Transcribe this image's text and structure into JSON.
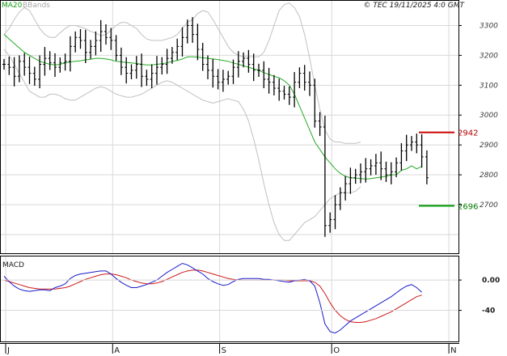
{
  "header": {
    "legend_ma": "MA20",
    "legend_bbands": "BBands",
    "copyright": "© TEC 19/11/2025 4:0 GMT"
  },
  "macd_panel": {
    "title": "MACD"
  },
  "colors": {
    "price": "#000000",
    "ma20": "#22aa22",
    "bbands": "#c0c0c0",
    "macd_line": "#1a1acc",
    "signal_line": "#cc1a1a",
    "resistance": "#cc0000",
    "support": "#009900",
    "grid": "#d8d8d8"
  },
  "chart_data": [
    {
      "type": "line",
      "title": "",
      "ylim": [
        2540,
        3380
      ],
      "y_ticks": [
        2700,
        2800,
        2900,
        3000,
        3100,
        3200,
        3300
      ],
      "x_month_labels": [
        "J",
        "A",
        "S",
        "O",
        "N"
      ],
      "x_month_start_bar": [
        0,
        21,
        42,
        64,
        87
      ],
      "series": [
        {
          "name": "MA20",
          "color": "#22aa22"
        },
        {
          "name": "BBands",
          "color": "#c0c0c0"
        }
      ],
      "close": [
        3170,
        3160,
        3130,
        3180,
        3160,
        3140,
        3120,
        3170,
        3190,
        3175,
        3160,
        3175,
        3180,
        3230,
        3260,
        3250,
        3210,
        3230,
        3250,
        3280,
        3260,
        3250,
        3200,
        3160,
        3140,
        3150,
        3170,
        3130,
        3120,
        3140,
        3160,
        3170,
        3190,
        3210,
        3230,
        3260,
        3300,
        3270,
        3220,
        3170,
        3150,
        3130,
        3110,
        3120,
        3130,
        3160,
        3180,
        3190,
        3170,
        3150,
        3150,
        3120,
        3110,
        3090,
        3080,
        3070,
        3060,
        3110,
        3140,
        3110,
        3100,
        2980,
        2960,
        2630,
        2650,
        2700,
        2740,
        2770,
        2790,
        2800,
        2810,
        2820,
        2830,
        2840,
        2820,
        2800,
        2810,
        2840,
        2880,
        2900,
        2910,
        2900,
        2860,
        2790
      ],
      "ma20": [
        3270,
        3255,
        3240,
        3225,
        3210,
        3200,
        3190,
        3180,
        3175,
        3170,
        3168,
        3170,
        3175,
        3178,
        3180,
        3182,
        3185,
        3187,
        3190,
        3190,
        3188,
        3185,
        3180,
        3178,
        3176,
        3175,
        3173,
        3170,
        3168,
        3168,
        3170,
        3172,
        3175,
        3180,
        3183,
        3188,
        3195,
        3195,
        3194,
        3192,
        3190,
        3188,
        3186,
        3183,
        3180,
        3175,
        3170,
        3165,
        3160,
        3155,
        3150,
        3142,
        3136,
        3130,
        3125,
        3115,
        3100,
        3070,
        3030,
        2990,
        2950,
        2910,
        2885,
        2860,
        2840,
        2820,
        2805,
        2795,
        2790,
        2789,
        2787,
        2786,
        2787,
        2790,
        2792,
        2795,
        2800,
        2800,
        2815,
        2820,
        2830,
        2820,
        2828
      ],
      "bb_upper": [
        3270,
        3290,
        3320,
        3345,
        3360,
        3350,
        3320,
        3290,
        3270,
        3260,
        3260,
        3275,
        3290,
        3300,
        3300,
        3295,
        3290,
        3280,
        3275,
        3265,
        3270,
        3285,
        3300,
        3310,
        3310,
        3300,
        3290,
        3270,
        3255,
        3250,
        3250,
        3250,
        3255,
        3260,
        3270,
        3290,
        3310,
        3320,
        3340,
        3350,
        3345,
        3320,
        3290,
        3260,
        3230,
        3210,
        3200,
        3195,
        3195,
        3195,
        3195,
        3210,
        3250,
        3300,
        3350,
        3370,
        3375,
        3360,
        3330,
        3270,
        3190,
        3100,
        3020,
        2950,
        2920,
        2910,
        2910,
        2905,
        2905,
        2905,
        2910
      ],
      "bb_lower": [
        3220,
        3200,
        3170,
        3140,
        3110,
        3080,
        3070,
        3060,
        3060,
        3070,
        3070,
        3065,
        3055,
        3050,
        3050,
        3060,
        3070,
        3080,
        3090,
        3095,
        3090,
        3080,
        3070,
        3065,
        3060,
        3060,
        3065,
        3070,
        3080,
        3090,
        3100,
        3110,
        3115,
        3110,
        3100,
        3090,
        3080,
        3070,
        3060,
        3050,
        3045,
        3040,
        3045,
        3050,
        3055,
        3050,
        3045,
        3020,
        2980,
        2920,
        2850,
        2770,
        2700,
        2640,
        2600,
        2580,
        2580,
        2600,
        2620,
        2640,
        2650,
        2660,
        2680,
        2700,
        2720,
        2730,
        2740,
        2740,
        2740,
        2745,
        2760
      ],
      "resistance_level": {
        "value": 2942,
        "label": "2942"
      },
      "support_level": {
        "value": 2696,
        "label": "2696"
      }
    },
    {
      "type": "line",
      "title": "MACD",
      "ylim": [
        -80,
        30
      ],
      "y_ticks": [
        0,
        -40
      ],
      "y_tick_labels": [
        "0.00",
        "-40"
      ],
      "series": [
        {
          "name": "MACD",
          "color": "#1a1acc",
          "values": [
            5,
            -2,
            -8,
            -12,
            -14,
            -15,
            -14,
            -13,
            -13,
            -14,
            -10,
            -8,
            -5,
            2,
            6,
            8,
            9,
            10,
            11,
            12,
            12,
            8,
            2,
            -3,
            -7,
            -10,
            -10,
            -8,
            -6,
            -3,
            0,
            5,
            10,
            14,
            18,
            22,
            20,
            16,
            12,
            8,
            2,
            -2,
            -5,
            -7,
            -6,
            -2,
            1,
            2,
            2,
            2,
            2,
            1,
            1,
            0,
            -1,
            -2,
            -3,
            -1,
            0,
            1,
            -1,
            -8,
            -30,
            -58,
            -68,
            -70,
            -66,
            -60,
            -54,
            -50,
            -46,
            -42,
            -38,
            -34,
            -30,
            -26,
            -22,
            -17,
            -12,
            -8,
            -6,
            -10,
            -16
          ]
        },
        {
          "name": "Signal",
          "color": "#cc1a1a",
          "values": [
            0,
            -2,
            -4,
            -6,
            -8,
            -10,
            -11,
            -12,
            -12,
            -12,
            -12,
            -11,
            -10,
            -8,
            -5,
            -2,
            1,
            3,
            5,
            7,
            8,
            8,
            7,
            5,
            3,
            0,
            -2,
            -4,
            -5,
            -5,
            -4,
            -2,
            1,
            4,
            7,
            10,
            12,
            13,
            13,
            12,
            10,
            8,
            6,
            4,
            2,
            1,
            0,
            0,
            0,
            0,
            0,
            0,
            0,
            0,
            0,
            0,
            -1,
            -1,
            -1,
            -1,
            -1,
            -3,
            -8,
            -18,
            -30,
            -40,
            -47,
            -52,
            -55,
            -56,
            -56,
            -55,
            -53,
            -51,
            -48,
            -45,
            -42,
            -38,
            -34,
            -30,
            -26,
            -22,
            -20
          ]
        }
      ]
    }
  ]
}
